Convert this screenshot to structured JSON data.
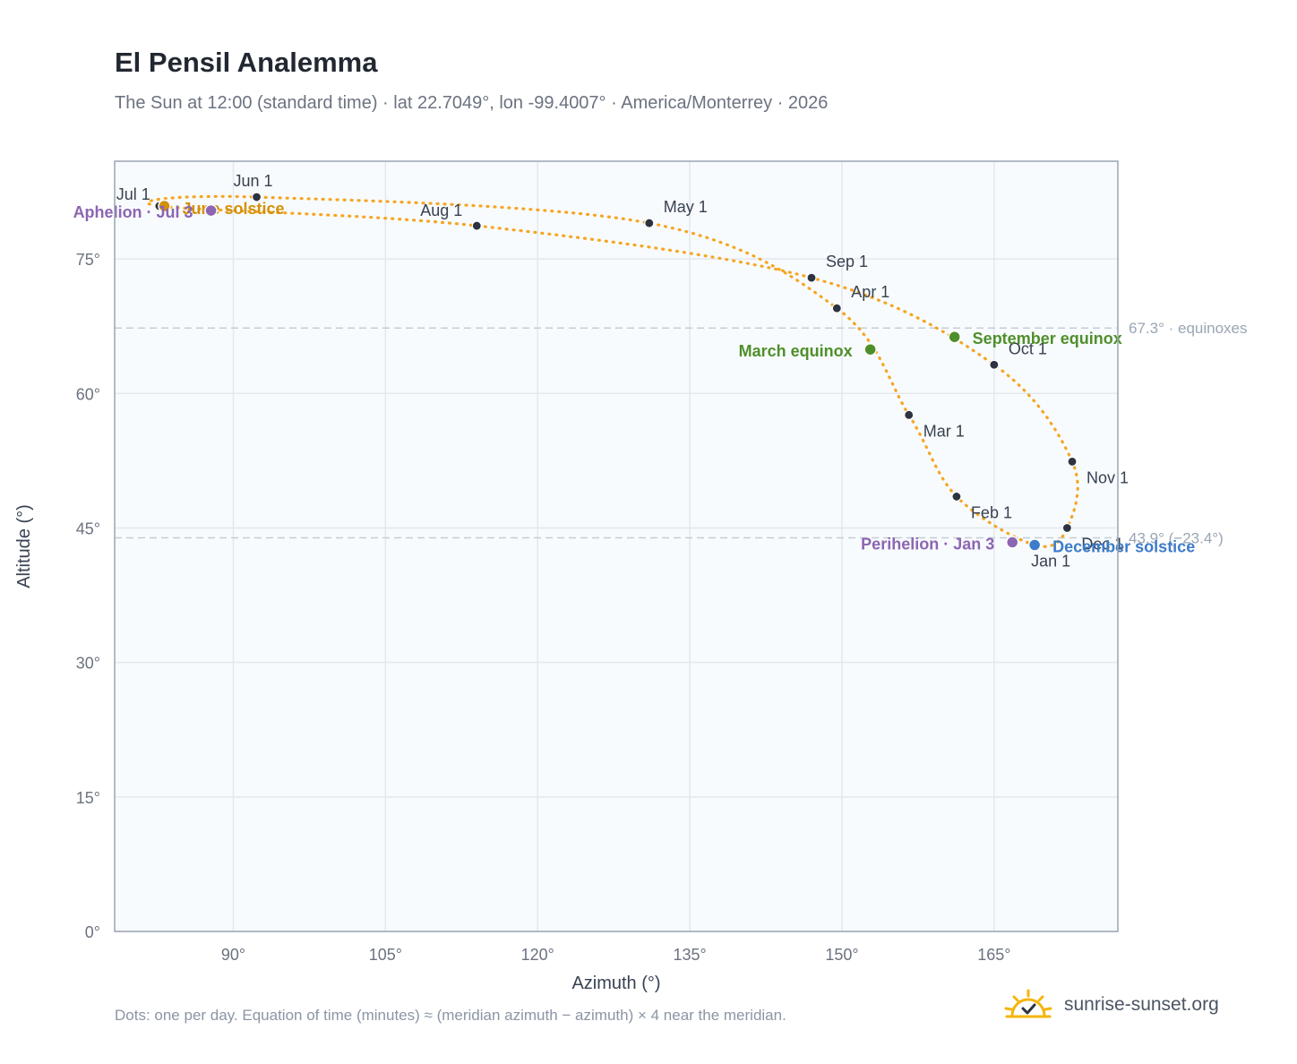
{
  "title": "El Pensil Analemma",
  "subtitle": "The Sun at 12:00 (standard time) · lat 22.7049°, lon -99.4007° · America/Monterrey · 2026",
  "footnote": "Dots: one per day. Equation of time (minutes) ≈ (meridian azimuth − azimuth) × 4 near the meridian.",
  "brand": {
    "name": "sunrise-sunset.org",
    "icon": "sun-check-icon"
  },
  "colors": {
    "curve": "#f5a623",
    "month_marker": "#2d3340",
    "equinox": "#4e8f2a",
    "solstice_june": "#d4900a",
    "solstice_december": "#3d7cc9",
    "apsis": "#8c65b3",
    "reference_line": "#c5ccd6",
    "plot_bg": "#f8fbfd",
    "grid": "#e3e8ee",
    "axis": "#9aa5b4"
  },
  "chart_data": {
    "type": "scatter",
    "xlabel": "Azimuth (°)",
    "ylabel": "Altitude (°)",
    "xlim": [
      78.3,
      177.2
    ],
    "ylim": [
      0,
      85.9
    ],
    "xticks": [
      90,
      105,
      120,
      135,
      150,
      165
    ],
    "xtick_labels": [
      "90°",
      "105°",
      "120°",
      "135°",
      "150°",
      "165°"
    ],
    "yticks": [
      0,
      15,
      30,
      45,
      60,
      75
    ],
    "ytick_labels": [
      "0°",
      "15°",
      "30°",
      "45°",
      "60°",
      "75°"
    ],
    "grid": true,
    "reference_lines": [
      {
        "y": 67.3,
        "label": "67.3° · equinoxes"
      },
      {
        "y": 43.9,
        "label": "43.9° (−23.4°)"
      }
    ],
    "month_markers": [
      {
        "label": "Jan 1",
        "x": 169.0,
        "y": 43.1
      },
      {
        "label": "Feb 1",
        "x": 161.3,
        "y": 48.5
      },
      {
        "label": "Mar 1",
        "x": 156.6,
        "y": 57.6
      },
      {
        "label": "Apr 1",
        "x": 149.5,
        "y": 69.5
      },
      {
        "label": "May 1",
        "x": 131.0,
        "y": 79.0
      },
      {
        "label": "Jun 1",
        "x": 92.3,
        "y": 81.9
      },
      {
        "label": "Jul 1",
        "x": 82.7,
        "y": 80.9
      },
      {
        "label": "Aug 1",
        "x": 114.0,
        "y": 78.7
      },
      {
        "label": "Sep 1",
        "x": 147.0,
        "y": 72.9
      },
      {
        "label": "Oct 1",
        "x": 165.0,
        "y": 63.2
      },
      {
        "label": "Nov 1",
        "x": 172.7,
        "y": 52.4
      },
      {
        "label": "Dec 1",
        "x": 172.2,
        "y": 45.0
      }
    ],
    "events": [
      {
        "label": "March equinox",
        "x": 152.8,
        "y": 64.9,
        "kind": "equinox"
      },
      {
        "label": "September equinox",
        "x": 161.1,
        "y": 66.3,
        "kind": "equinox"
      },
      {
        "label": "June solstice",
        "x": 83.2,
        "y": 80.9,
        "kind": "solstice_june"
      },
      {
        "label": "December solstice",
        "x": 169.0,
        "y": 43.1,
        "kind": "solstice_december"
      },
      {
        "label": "Aphelion · Jul 3",
        "x": 87.8,
        "y": 80.4,
        "kind": "apsis"
      },
      {
        "label": "Perihelion · Jan 3",
        "x": 166.8,
        "y": 43.4,
        "kind": "apsis"
      }
    ]
  }
}
